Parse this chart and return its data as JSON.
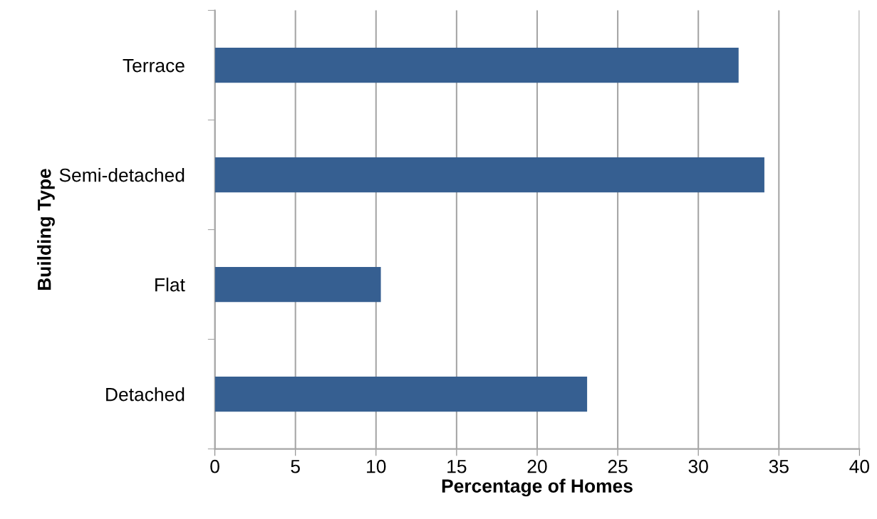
{
  "chart_data": {
    "type": "bar",
    "orientation": "horizontal",
    "categories": [
      "Terrace",
      "Semi-detached",
      "Flat",
      "Detached"
    ],
    "values": [
      32.5,
      34.1,
      10.3,
      23.1
    ],
    "color": "#365f91",
    "xlabel": "Percentage of Homes",
    "ylabel": "Building Type",
    "xlim": [
      0,
      40
    ],
    "xticks": [
      0,
      5,
      10,
      15,
      20,
      25,
      30,
      35,
      40
    ],
    "grid": "x",
    "legend": false
  }
}
